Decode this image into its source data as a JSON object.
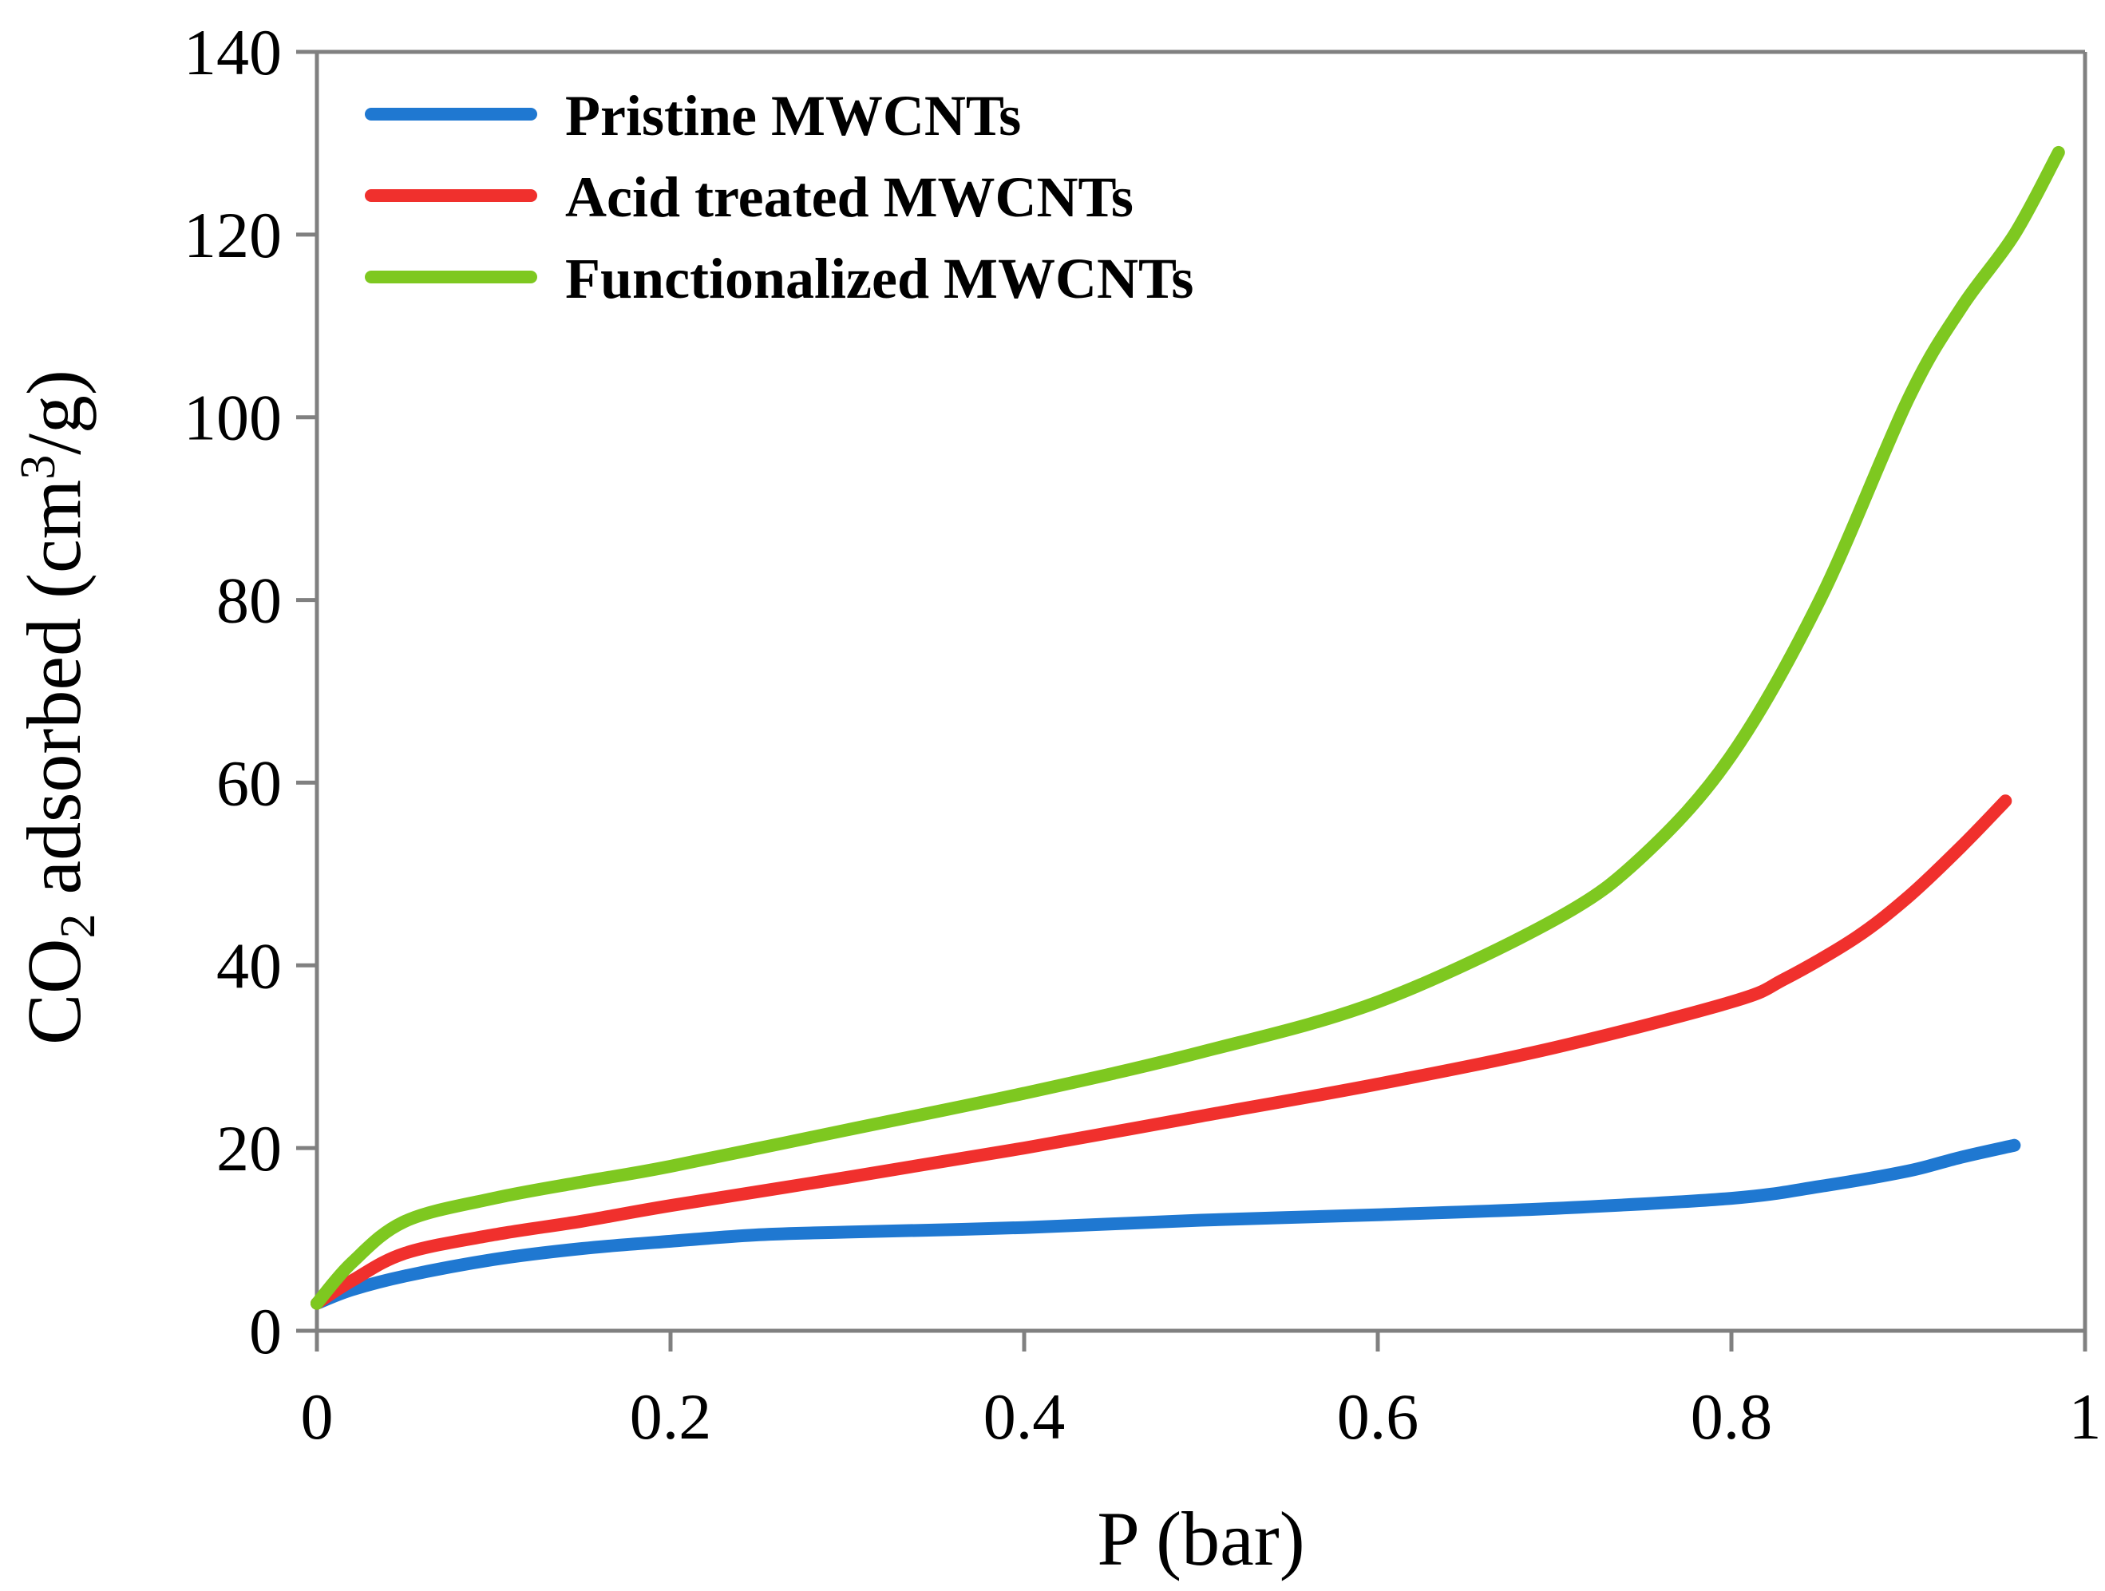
{
  "chart_data": {
    "type": "line",
    "title": "",
    "xlabel": "P (bar)",
    "ylabel": {
      "prefix": "CO",
      "sub": "2",
      "middle": " adsorbed (cm",
      "sup": "3",
      "suffix": "/g)"
    },
    "xlim": [
      0,
      1
    ],
    "ylim": [
      0,
      140
    ],
    "x_ticks": [
      "0",
      "0.2",
      "0.4",
      "0.6",
      "0.8",
      "1"
    ],
    "y_ticks": [
      "0",
      "20",
      "40",
      "60",
      "80",
      "100",
      "120",
      "140"
    ],
    "grid": false,
    "legend_position": "top-left",
    "series": [
      {
        "name": "Pristine MWCNTs",
        "color": "#1f78d1",
        "x": [
          0,
          0.02,
          0.05,
          0.1,
          0.15,
          0.2,
          0.25,
          0.3,
          0.4,
          0.5,
          0.6,
          0.7,
          0.8,
          0.85,
          0.9,
          0.93,
          0.96
        ],
        "y": [
          3,
          4.5,
          6,
          7.8,
          9,
          9.8,
          10.5,
          10.8,
          11.3,
          12.1,
          12.7,
          13.4,
          14.5,
          15.8,
          17.5,
          19,
          20.3
        ]
      },
      {
        "name": "Acid treated MWCNTs",
        "color": "#f0302d",
        "x": [
          0,
          0.02,
          0.05,
          0.1,
          0.15,
          0.2,
          0.3,
          0.4,
          0.5,
          0.6,
          0.7,
          0.8,
          0.83,
          0.87,
          0.9,
          0.93,
          0.955
        ],
        "y": [
          3,
          5.5,
          8.5,
          10.5,
          12,
          13.7,
          16.8,
          20,
          23.5,
          27,
          31,
          36,
          38.5,
          43,
          47.5,
          53,
          58
        ]
      },
      {
        "name": "Functionalized MWCNTs",
        "color": "#7ec820",
        "x": [
          0,
          0.02,
          0.05,
          0.1,
          0.15,
          0.2,
          0.3,
          0.4,
          0.5,
          0.6,
          0.7,
          0.75,
          0.8,
          0.85,
          0.9,
          0.93,
          0.96,
          0.985
        ],
        "y": [
          3,
          7.5,
          12,
          14.5,
          16.3,
          18,
          22,
          26,
          30.5,
          36,
          45,
          52,
          63,
          80,
          102,
          112,
          120,
          129
        ]
      }
    ]
  }
}
